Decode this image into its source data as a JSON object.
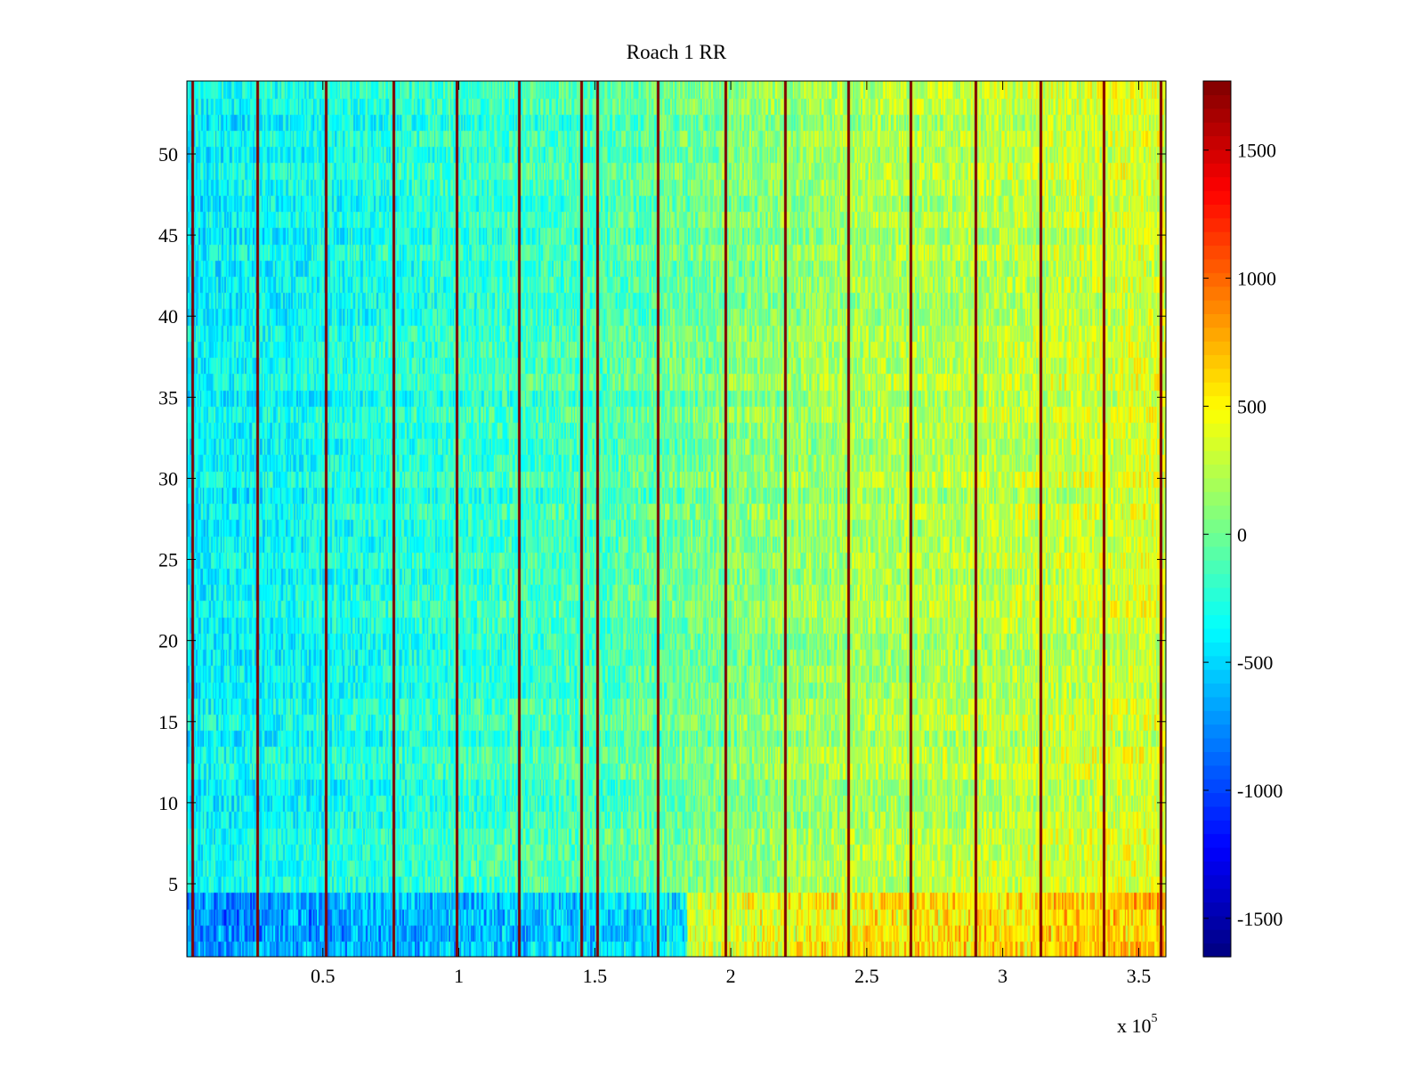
{
  "chart_data": {
    "type": "heatmap",
    "title": "Roach 1 RR",
    "xlabel": "",
    "ylabel": "",
    "x_tick_labels": [
      "0.5",
      "1",
      "1.5",
      "2",
      "2.5",
      "3",
      "3.5"
    ],
    "x_ticks": [
      50000,
      100000,
      150000,
      200000,
      250000,
      300000,
      350000
    ],
    "x_multiplier_base": "x 10",
    "x_multiplier_exponent": "5",
    "xlim": [
      0,
      360000
    ],
    "y_tick_labels": [
      "5",
      "10",
      "15",
      "20",
      "25",
      "30",
      "35",
      "40",
      "45",
      "50"
    ],
    "y_ticks": [
      5,
      10,
      15,
      20,
      25,
      30,
      35,
      40,
      45,
      50
    ],
    "ylim": [
      0.5,
      54.5
    ],
    "rows": 54,
    "colormap": "jet",
    "colorbar": {
      "tick_labels": [
        "1500",
        "1000",
        "500",
        "0",
        "-500",
        "-1000",
        "-1500"
      ],
      "ticks": [
        1500,
        1000,
        500,
        0,
        -500,
        -1000,
        -1500
      ],
      "clim": [
        -1650,
        1770
      ],
      "location": "right"
    },
    "value_trend": {
      "description_x": [
        0,
        50000,
        100000,
        150000,
        200000,
        250000,
        300000,
        360000
      ],
      "mean_value": [
        -400,
        -320,
        -200,
        -130,
        60,
        200,
        260,
        370
      ]
    },
    "spike_columns_x": [
      2000,
      26000,
      51000,
      76000,
      99000,
      122000,
      145000,
      151000,
      173000,
      198000,
      220000,
      243000,
      266000,
      290000,
      314000,
      337000,
      358000
    ],
    "spike_value": 1770,
    "low_band_rows": [
      1,
      2,
      3,
      4
    ],
    "low_band_extra": 350,
    "grid": false
  }
}
